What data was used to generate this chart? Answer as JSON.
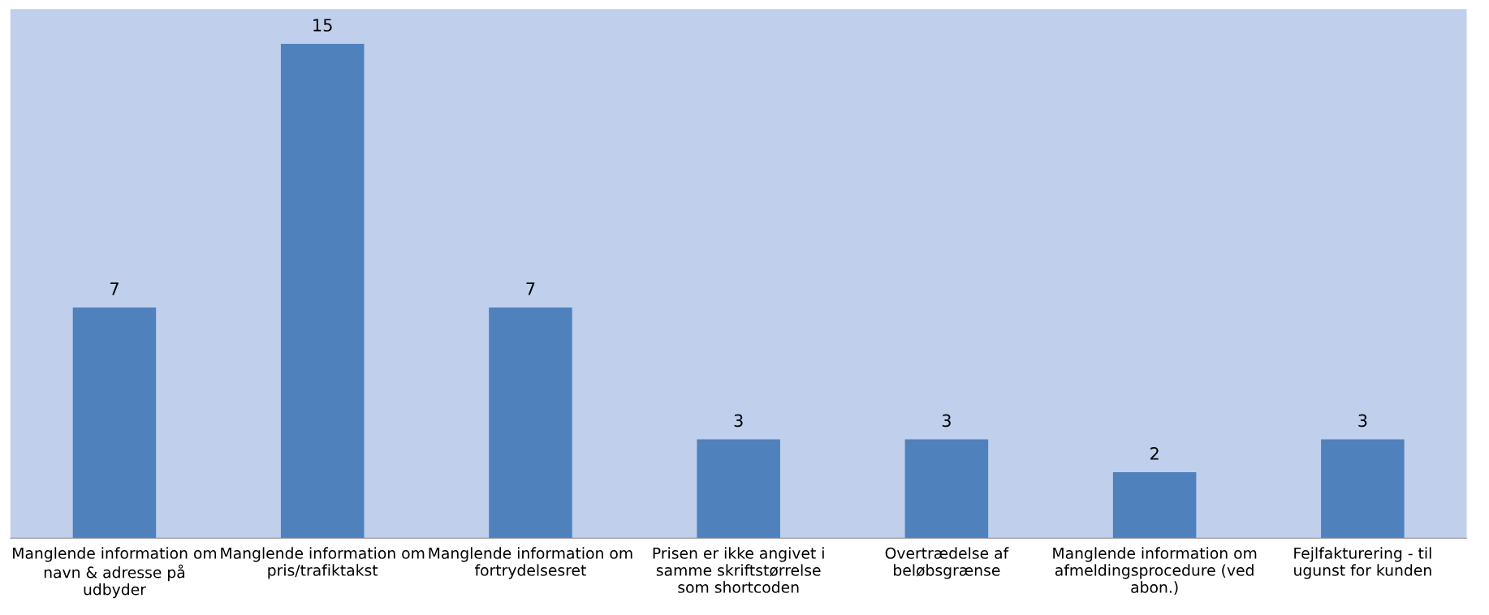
{
  "chart_data": {
    "type": "bar",
    "categories": [
      "Manglende information om navn & adresse på udbyder",
      "Manglende information om pris/trafiktakst",
      "Manglende information om fortrydelsesret",
      "Prisen er ikke angivet i samme skriftstørrelse som shortcoden",
      "Overtrædelse af beløbsgrænse",
      "Manglende information om afmeldingsprocedure (ved abon.)",
      "Fejlfakturering - til ugunst for kunden"
    ],
    "values": [
      7,
      15,
      7,
      3,
      3,
      2,
      3
    ],
    "color": "#4f81bd",
    "data_labels": true,
    "grid": false,
    "legend": false
  }
}
